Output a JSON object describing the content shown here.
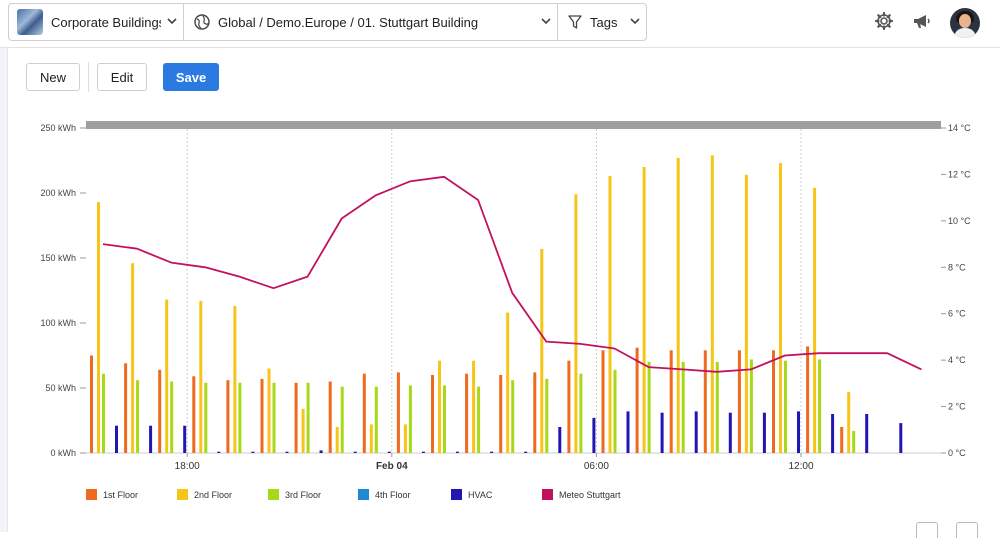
{
  "header": {
    "building_selector": {
      "label": "Corporate Buildings",
      "icon": "building-thumbnail-icon"
    },
    "path_selector": {
      "label": "Global / Demo.Europe / 01. Stuttgart Building",
      "icon": "globe-icon"
    },
    "tags_selector": {
      "label": "Tags",
      "icon": "filter-icon"
    },
    "icons": [
      "gear-icon",
      "megaphone-icon",
      "user-avatar"
    ]
  },
  "toolbar": {
    "new_label": "New",
    "edit_label": "Edit",
    "save_label": "Save",
    "save_color": "#2a7ae2"
  },
  "chart_data": {
    "type": "bar",
    "title": "",
    "x_ticks": [
      {
        "label": "18:00",
        "index": 2,
        "bold": false
      },
      {
        "label": "Feb 04",
        "index": 8,
        "bold": true
      },
      {
        "label": "06:00",
        "index": 14,
        "bold": false
      },
      {
        "label": "12:00",
        "index": 20,
        "bold": false
      }
    ],
    "y_left": {
      "unit": "kWh",
      "ylim": [
        0,
        250
      ],
      "ticks": [
        "0 kWh",
        "50 kWh",
        "100 kWh",
        "150 kWh",
        "200 kWh",
        "250 kWh"
      ]
    },
    "y_right": {
      "unit": "°C",
      "ylim": [
        0,
        14
      ],
      "ticks": [
        "0 °C",
        "2 °C",
        "4 °C",
        "6 °C",
        "8 °C",
        "10 °C",
        "12 °C",
        "14 °C"
      ]
    },
    "grid": "vertical-dashed",
    "legend_position": "bottom-left",
    "series": [
      {
        "name": "1st Floor",
        "color": "#ee6a1f",
        "axis": "left",
        "values": [
          75,
          69,
          64,
          59,
          56,
          57,
          54,
          55,
          61,
          62,
          60,
          61,
          60,
          62,
          71,
          79,
          81,
          79,
          79,
          79,
          79,
          82,
          20,
          0
        ]
      },
      {
        "name": "2nd Floor",
        "color": "#f6c518",
        "axis": "left",
        "values": [
          193,
          146,
          118,
          117,
          113,
          65,
          34,
          20,
          22,
          22,
          71,
          71,
          108,
          157,
          199,
          213,
          220,
          227,
          229,
          214,
          223,
          204,
          47,
          0
        ]
      },
      {
        "name": "3rd Floor",
        "color": "#a6d916",
        "axis": "left",
        "values": [
          61,
          56,
          55,
          54,
          54,
          54,
          54,
          51,
          51,
          52,
          52,
          51,
          56,
          57,
          61,
          64,
          70,
          70,
          70,
          72,
          71,
          72,
          17,
          0
        ]
      },
      {
        "name": "4th Floor",
        "color": "#1e8ad6",
        "axis": "left",
        "values": [
          0,
          0,
          0,
          0,
          0,
          0,
          0,
          0,
          0,
          0,
          0,
          0,
          0,
          0,
          0,
          0,
          0,
          0,
          0,
          0,
          0,
          0,
          0,
          0
        ]
      },
      {
        "name": "HVAC",
        "color": "#2116b4",
        "axis": "left",
        "values": [
          21,
          21,
          21,
          1,
          1,
          1,
          2,
          1,
          1,
          1,
          1,
          1,
          1,
          20,
          27,
          32,
          31,
          32,
          31,
          31,
          32,
          30,
          30,
          23
        ]
      },
      {
        "name": "Meteo Stuttgart",
        "color": "#c2125f",
        "axis": "right",
        "type": "line",
        "values": [
          9.0,
          8.8,
          8.2,
          8.0,
          7.6,
          7.1,
          7.6,
          10.1,
          11.1,
          11.7,
          11.9,
          10.9,
          6.9,
          4.8,
          4.7,
          4.5,
          3.7,
          3.6,
          3.5,
          3.6,
          4.2,
          4.3,
          4.3,
          4.3,
          3.6
        ]
      }
    ]
  }
}
